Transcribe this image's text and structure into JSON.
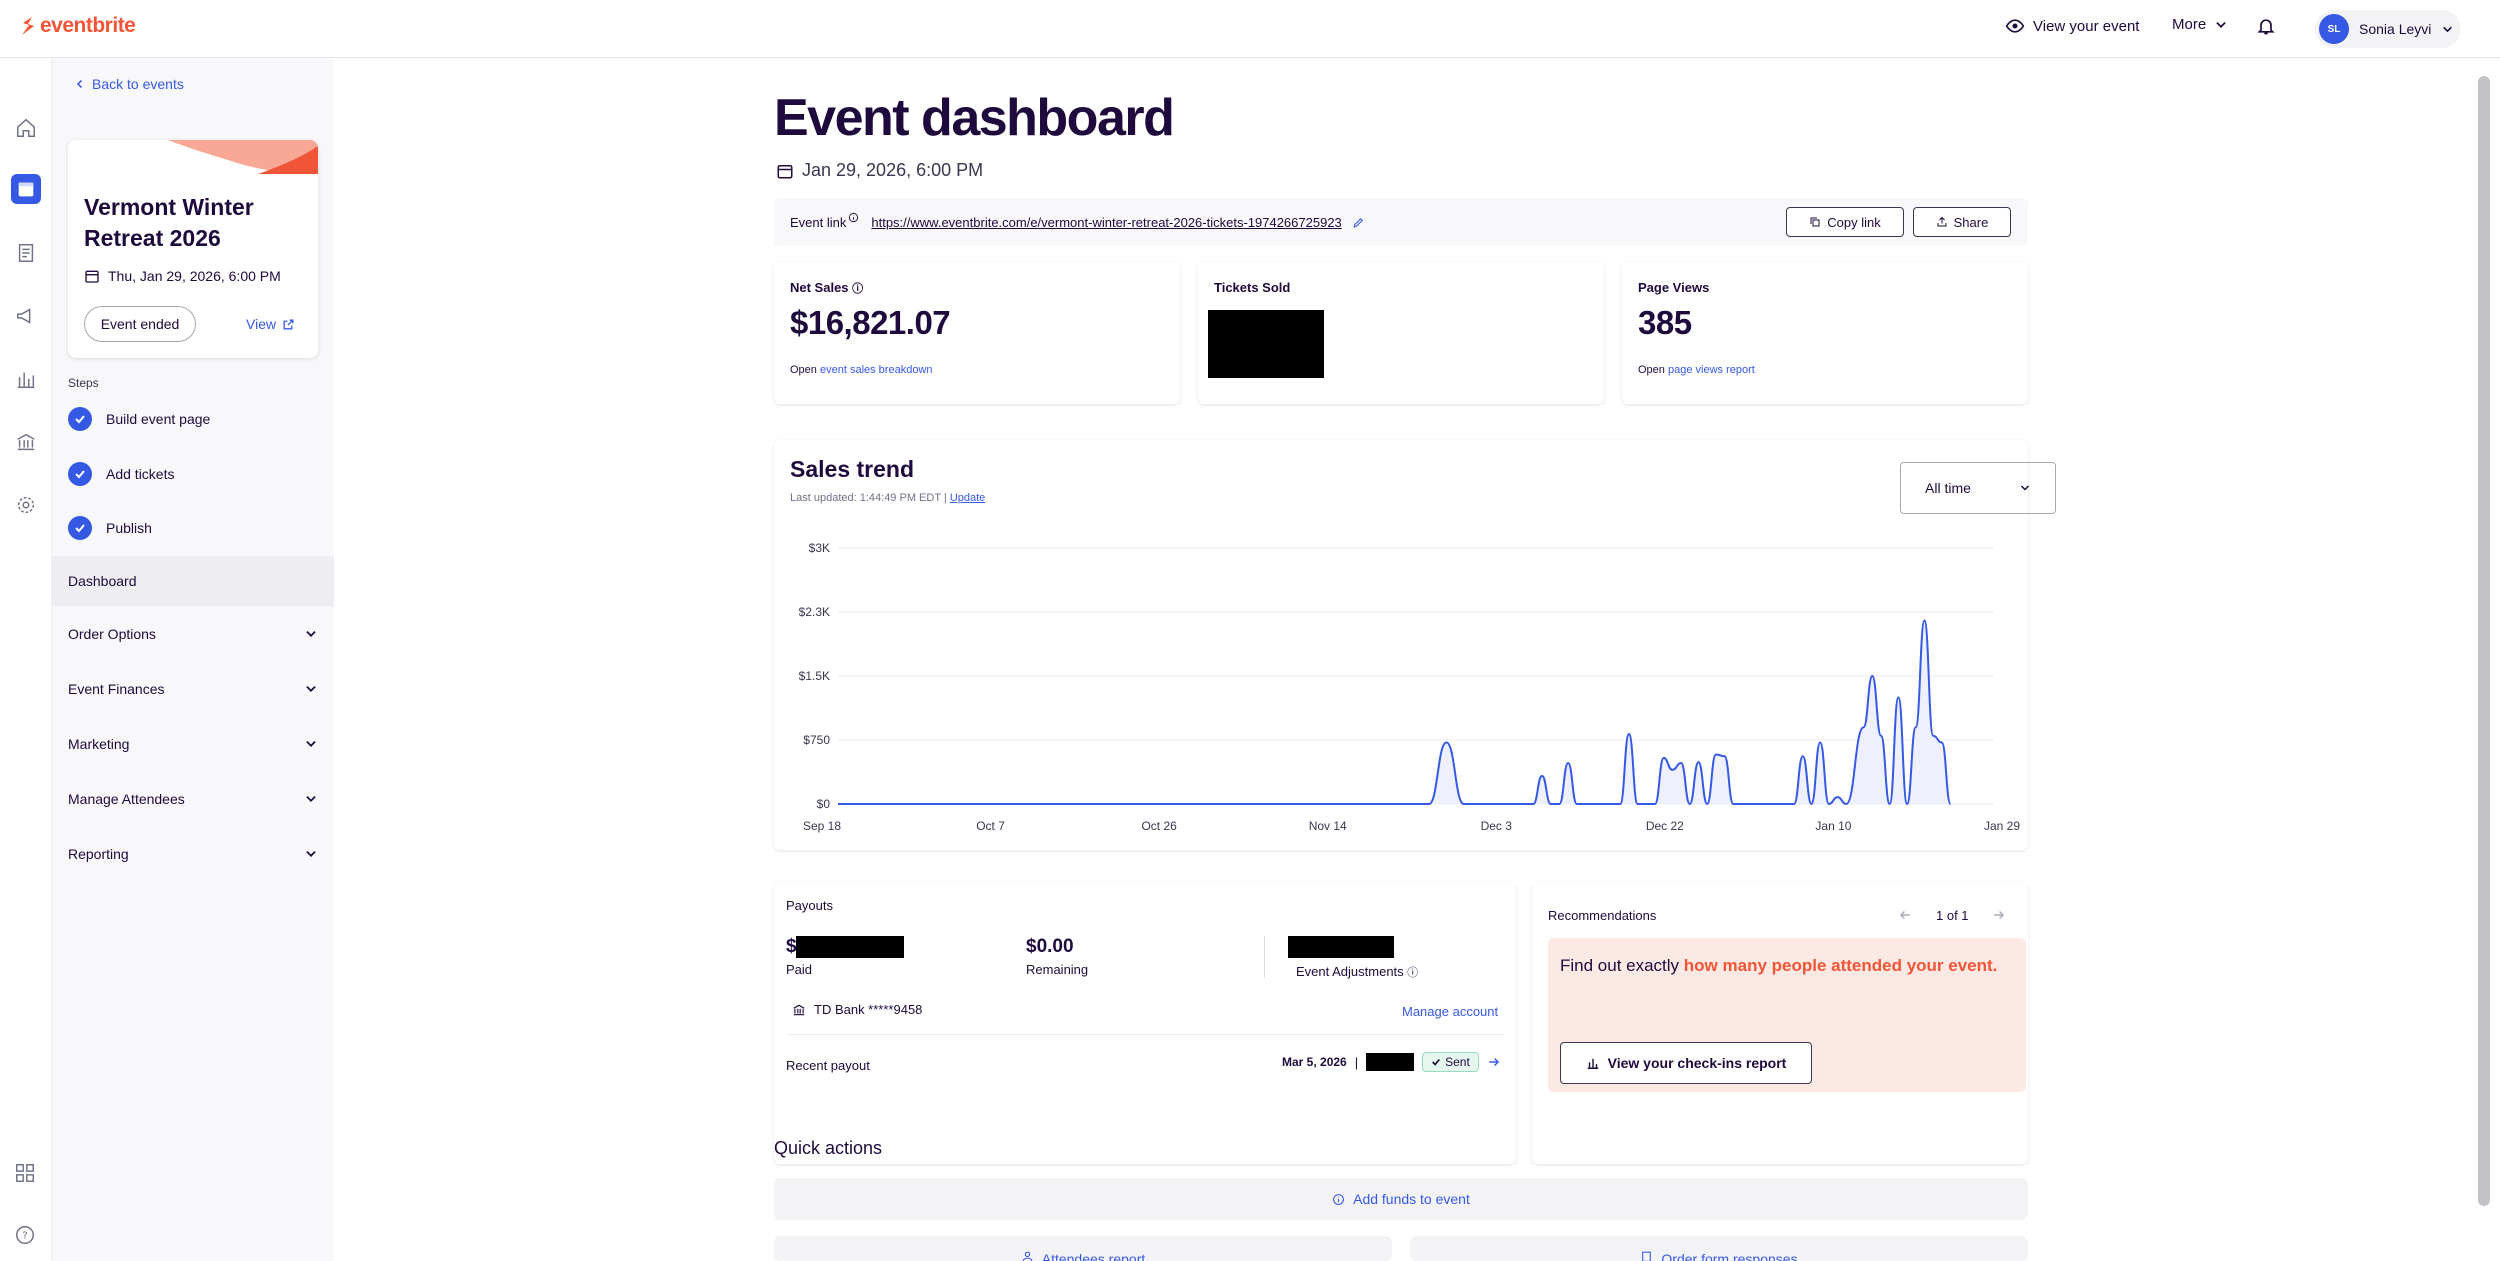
{
  "topbar": {
    "logo": "eventbrite",
    "view_event": "View your event",
    "more": "More",
    "user_initials": "SL",
    "user_name": "Sonia Leyvi",
    "icons": [
      "eye-icon",
      "chevron-down-icon",
      "bell-icon"
    ]
  },
  "sidebar": {
    "back": "Back to events",
    "event_title": "Vermont Winter Retreat 2026",
    "event_date": "Thu, Jan 29, 2026, 6:00 PM",
    "status": "Event ended",
    "view": "View",
    "steps_label": "Steps",
    "steps": [
      "Build event page",
      "Add tickets",
      "Publish"
    ],
    "active_item": "Dashboard",
    "items": [
      "Order Options",
      "Event Finances",
      "Marketing",
      "Manage Attendees",
      "Reporting"
    ]
  },
  "main": {
    "title": "Event dashboard",
    "date": "Jan 29, 2026, 6:00 PM",
    "event_link_label": "Event link",
    "event_link": "https://www.eventbrite.com/e/vermont-winter-retreat-2026-tickets-1974266725923",
    "copy_link": "Copy link",
    "share": "Share",
    "net_sales_label": "Net Sales",
    "net_sales": "$16,821.07",
    "net_sales_sub_prefix": "Open",
    "net_sales_sub_link": "event sales breakdown",
    "tickets_sold_label": "Tickets Sold",
    "page_views_label": "Page Views",
    "page_views": "385",
    "page_views_sub_prefix": "Open",
    "page_views_sub_link": "page views report",
    "sales_trend_title": "Sales trend",
    "last_updated": "Last updated: 1:44:49 PM EDT |",
    "update": "Update",
    "range": "All time",
    "payouts_label": "Payouts",
    "paid_prefix": "$",
    "paid_label": "Paid",
    "remaining_value": "$0.00",
    "remaining_label": "Remaining",
    "adjustments_label": "Event Adjustments",
    "bank": "TD Bank *****9458",
    "manage_account": "Manage account",
    "recent_payout": "Recent payout",
    "payout_date": "Mar 5, 2026",
    "payout_status": "Sent",
    "reco_label": "Recommendations",
    "reco_page": "1 of 1",
    "reco_text_a": "Find out exactly ",
    "reco_text_b": "how many people attended your event.",
    "reco_button": "View your check-ins report",
    "quick_actions": "Quick actions",
    "add_funds": "Add funds to event",
    "attendees_report": "Attendees report",
    "order_form": "Order form responses"
  },
  "chart_data": {
    "type": "line",
    "title": "Sales trend",
    "x_ticks": [
      "Sep 18",
      "Oct 7",
      "Oct 26",
      "Nov 14",
      "Dec 3",
      "Dec 22",
      "Jan 10",
      "Jan 29"
    ],
    "y_ticks": [
      "$0",
      "$750",
      "$1.5K",
      "$2.3K",
      "$3K"
    ],
    "ylim": [
      0,
      3000
    ],
    "x_range_days": [
      0,
      133
    ],
    "series": [
      {
        "color": "#3659e3",
        "points": [
          [
            0,
            0
          ],
          [
            68,
            0
          ],
          [
            70,
            720
          ],
          [
            72,
            0
          ],
          [
            80,
            0
          ],
          [
            81,
            330
          ],
          [
            82,
            0
          ],
          [
            83,
            0
          ],
          [
            84,
            480
          ],
          [
            85,
            0
          ],
          [
            90,
            0
          ],
          [
            91,
            820
          ],
          [
            92,
            0
          ],
          [
            94,
            0
          ],
          [
            95,
            540
          ],
          [
            96,
            400
          ],
          [
            97,
            480
          ],
          [
            98,
            0
          ],
          [
            99,
            490
          ],
          [
            100,
            0
          ],
          [
            101,
            580
          ],
          [
            102,
            560
          ],
          [
            103,
            0
          ],
          [
            110,
            0
          ],
          [
            111,
            560
          ],
          [
            112,
            0
          ],
          [
            113,
            720
          ],
          [
            114,
            0
          ],
          [
            115,
            80
          ],
          [
            116,
            0
          ],
          [
            118,
            900
          ],
          [
            119,
            1500
          ],
          [
            120,
            800
          ],
          [
            121,
            0
          ],
          [
            122,
            1250
          ],
          [
            123,
            0
          ],
          [
            124,
            900
          ],
          [
            125,
            2150
          ],
          [
            126,
            800
          ],
          [
            127,
            720
          ],
          [
            128,
            0
          ]
        ]
      }
    ]
  }
}
